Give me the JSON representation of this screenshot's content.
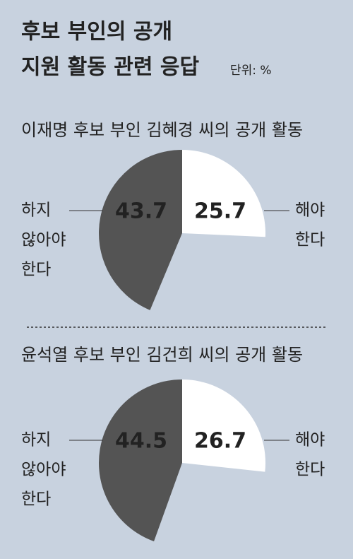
{
  "header": {
    "title_lines": [
      "후보 부인의 공개",
      "지원 활동 관련 응답"
    ],
    "unit": "단위: %"
  },
  "chart_data": [
    {
      "type": "pie",
      "title": "이재명 후보 부인 김혜경 씨의 공개 활동",
      "categories": [
        [
          "하지",
          "않아야",
          "한다"
        ],
        [
          "해야",
          "한다"
        ]
      ],
      "values": [
        43.7,
        25.7
      ],
      "colors": [
        "#545454",
        "#ffffff"
      ]
    },
    {
      "type": "pie",
      "title": "윤석열 후보 부인 김건희 씨의 공개 활동",
      "categories": [
        [
          "하지",
          "않아야",
          "한다"
        ],
        [
          "해야",
          "한다"
        ]
      ],
      "values": [
        44.5,
        26.7
      ],
      "colors": [
        "#545454",
        "#ffffff"
      ]
    }
  ]
}
